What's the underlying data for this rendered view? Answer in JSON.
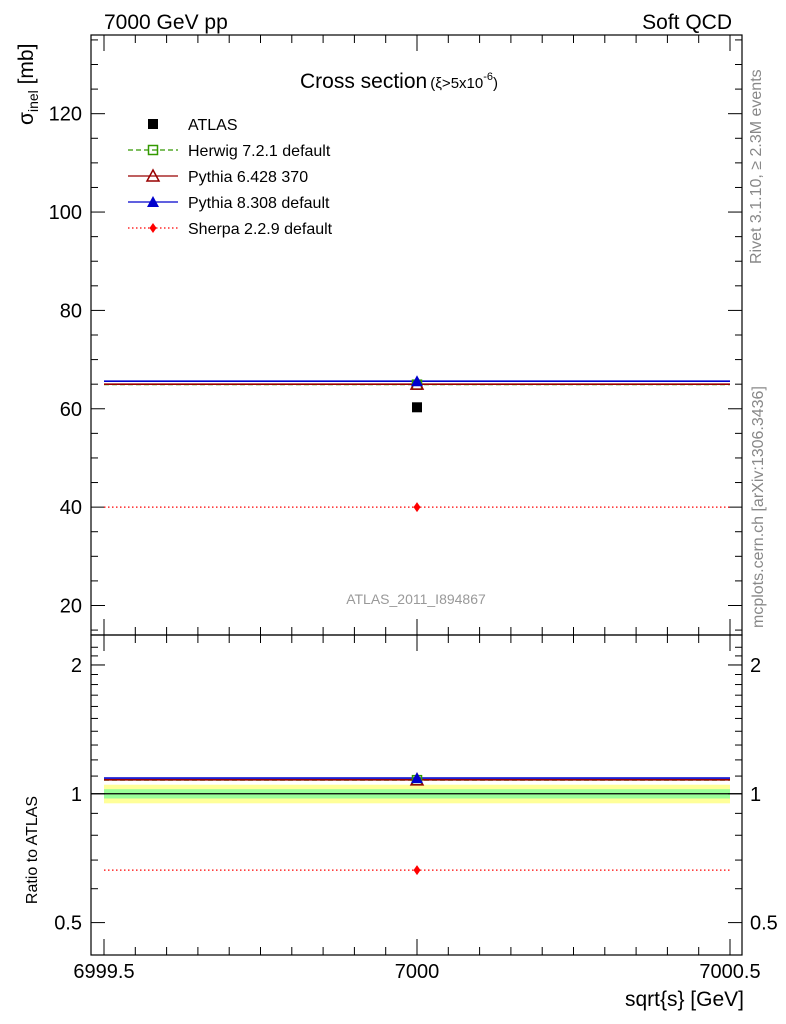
{
  "header": {
    "left": "7000 GeV pp",
    "right": "Soft QCD"
  },
  "side_text": {
    "upper": "Rivet 3.1.10, ≥ 2.3M events",
    "lower": "mcplots.cern.ch [arXiv:1306.3436]"
  },
  "chart_data": [
    {
      "type": "scatter",
      "title": "Cross section",
      "title_suffix": "(ξ>5x10",
      "title_exponent": "-6",
      "title_close": ")",
      "watermark": "ATLAS_2011_I894867",
      "ylabel": "σ",
      "ylabel_sub": "inel",
      "ylabel_unit": " [mb]",
      "xlim": [
        6999.5,
        7000.5
      ],
      "ylim": [
        14,
        136
      ],
      "yticks": [
        20,
        40,
        60,
        80,
        100,
        120
      ],
      "legend_position": "top-left",
      "series": [
        {
          "name": "ATLAS",
          "color": "#000000",
          "marker": "square-filled",
          "line": "none",
          "x": [
            7000
          ],
          "y": [
            60.3
          ]
        },
        {
          "name": "Herwig 7.2.1 default",
          "color": "#339900",
          "marker": "square-open",
          "line": "dashed",
          "x": [
            7000
          ],
          "y": [
            64.9
          ]
        },
        {
          "name": "Pythia 6.428 370",
          "color": "#990000",
          "marker": "triangle-open",
          "line": "solid",
          "x": [
            7000
          ],
          "y": [
            65.0
          ]
        },
        {
          "name": "Pythia 8.308 default",
          "color": "#0000cc",
          "marker": "triangle-filled",
          "line": "solid",
          "x": [
            7000
          ],
          "y": [
            65.6
          ]
        },
        {
          "name": "Sherpa 2.2.9 default",
          "color": "#ff0000",
          "marker": "diamond-filled",
          "line": "dotted",
          "x": [
            7000
          ],
          "y": [
            40.0
          ]
        }
      ]
    },
    {
      "type": "scatter",
      "xlabel": "sqrt{s} [GeV]",
      "ylabel": "Ratio to ATLAS",
      "xlim": [
        6999.5,
        7000.5
      ],
      "ylim": [
        0.42,
        2.35
      ],
      "log_scale": "y",
      "yticks": [
        0.5,
        1,
        2
      ],
      "ytick_labels": [
        "0.5",
        "1",
        "2"
      ],
      "xticks": [
        6999.5,
        7000,
        7000.5
      ],
      "xtick_labels": [
        "6999.5",
        "7000",
        "7000.5"
      ],
      "bands": [
        {
          "color": "#ffff99",
          "lo": 0.95,
          "hi": 1.05
        },
        {
          "color": "#99ff99",
          "lo": 0.975,
          "hi": 1.025
        }
      ],
      "series": [
        {
          "name": "Herwig 7.2.1 default",
          "color": "#339900",
          "line": "dashed",
          "y": [
            1.076
          ]
        },
        {
          "name": "Pythia 6.428 370",
          "color": "#990000",
          "line": "solid",
          "y": [
            1.078
          ]
        },
        {
          "name": "Pythia 8.308 default",
          "color": "#0000cc",
          "line": "solid",
          "y": [
            1.088
          ]
        },
        {
          "name": "Sherpa 2.2.9 default",
          "color": "#ff0000",
          "line": "dotted",
          "y": [
            0.663
          ]
        }
      ]
    }
  ]
}
